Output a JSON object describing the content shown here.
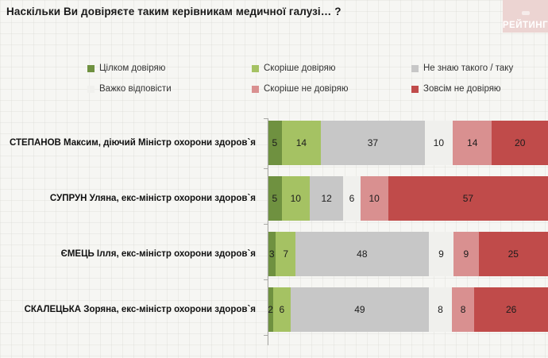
{
  "title": "Наскільки Ви довіряєте таким керівникам медичної галузі… ?",
  "logo": {
    "text": "РЕЙТИНГ",
    "bg_color": "#ecd4d2"
  },
  "legend": [
    {
      "label": "Цілком довіряю",
      "color": "#6f9140"
    },
    {
      "label": "Скоріше довіряю",
      "color": "#a5c263"
    },
    {
      "label": "Не знаю такого / таку",
      "color": "#c7c7c7"
    },
    {
      "label": "Важко відповісти",
      "color": "#f0f0ed"
    },
    {
      "label": "Скоріше не довіряю",
      "color": "#d99090"
    },
    {
      "label": "Зовсім не довіряю",
      "color": "#c04b4a"
    }
  ],
  "chart_data": {
    "type": "bar",
    "stacked": true,
    "orientation": "horizontal",
    "unit": "percent",
    "xlim": [
      0,
      100
    ],
    "grid": false,
    "legend_position": "top",
    "title": "Наскільки Ви довіряєте таким керівникам медичної галузі… ?",
    "categories": [
      "СТЕПАНОВ Максим, діючий Міністр охорони здоров`я",
      "СУПРУН Уляна, екс-міністр охорони здоров`я",
      "ЄМЕЦЬ Ілля, екс-міністр охорони здоров`я",
      "СКАЛЕЦЬКА Зоряна, екс-міністр охорони здоров`я"
    ],
    "series": [
      {
        "name": "Цілком довіряю",
        "color": "#6f9140",
        "values": [
          5,
          5,
          3,
          2
        ]
      },
      {
        "name": "Скоріше довіряю",
        "color": "#a5c263",
        "values": [
          14,
          10,
          7,
          6
        ]
      },
      {
        "name": "Не знаю такого / таку",
        "color": "#c7c7c7",
        "values": [
          37,
          12,
          48,
          49
        ]
      },
      {
        "name": "Важко відповісти",
        "color": "#f0f0ed",
        "values": [
          10,
          6,
          9,
          8
        ]
      },
      {
        "name": "Скоріше не довіряю",
        "color": "#d99090",
        "values": [
          14,
          10,
          9,
          8
        ]
      },
      {
        "name": "Зовсім не довіряю",
        "color": "#c04b4a",
        "values": [
          20,
          57,
          25,
          26
        ]
      }
    ]
  }
}
